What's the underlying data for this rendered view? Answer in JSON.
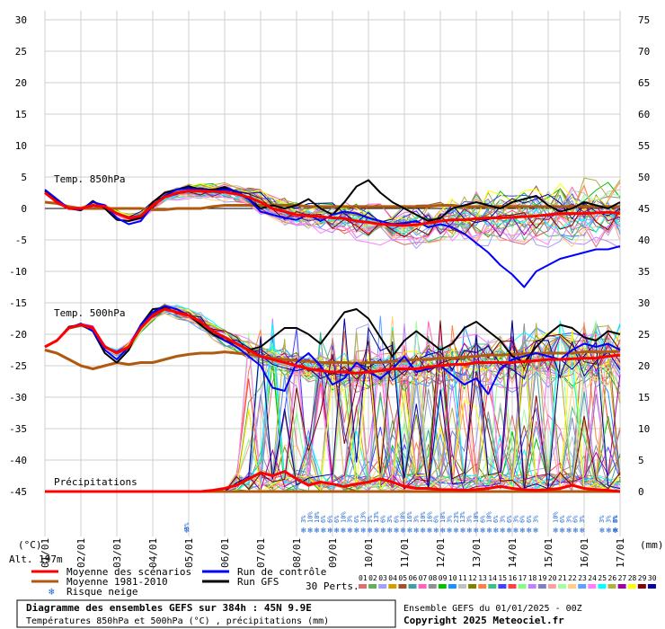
{
  "chart_data": {
    "type": "line",
    "title": "Diagramme des ensembles GEFS sur 384h : 45N 9.9E",
    "subtitle": "Températures 850hPa et 500hPa (°C) , précipitations (mm)",
    "run_info": "Ensemble GEFS du 01/01/2025 - 00Z",
    "copyright": "Copyright 2025 Meteociel.fr",
    "altitude": "Alt. 197m",
    "left_unit": "(°C)",
    "right_unit": "(mm)",
    "left_ticks": [
      "30",
      "25",
      "20",
      "15",
      "10",
      "5",
      "0",
      "-5",
      "-10",
      "-15",
      "-20",
      "-25",
      "-30",
      "-35",
      "-40",
      "-45"
    ],
    "right_ticks": [
      "75",
      "70",
      "65",
      "60",
      "55",
      "50",
      "45",
      "40",
      "35",
      "30",
      "25",
      "20",
      "15",
      "10",
      "5",
      "0"
    ],
    "x_dates": [
      "01/01",
      "02/01",
      "03/01",
      "04/01",
      "05/01",
      "06/01",
      "07/01",
      "08/01",
      "09/01",
      "10/01",
      "11/01",
      "12/01",
      "13/01",
      "14/01",
      "15/01",
      "16/01",
      "17/01"
    ],
    "panel_labels": {
      "t850": "Temp. 850hPa",
      "t500": "Temp. 500hPa",
      "precip": "Précipitations"
    },
    "snow_risk": {
      "percent_label": "3%",
      "labels": [
        "3%",
        "10%",
        "10%",
        "6%",
        "6%",
        "6%",
        "10%",
        "3%",
        "6%",
        "13%",
        "3%",
        "13%",
        "6%",
        "3%",
        "6%",
        "10%",
        "16%",
        "3%",
        "10%",
        "16%",
        "6%",
        "10%",
        "3%",
        "23%",
        "13%",
        "3%",
        "10%",
        "6%",
        "10%",
        "6%",
        "3%",
        "6%",
        "3%",
        "6%",
        "6%",
        "3%",
        "10%",
        "6%",
        "3%",
        "6%",
        "3%",
        "3%",
        "3%",
        "6%",
        "6%",
        "3%",
        "6%",
        "3%"
      ]
    },
    "legend": {
      "mean": "Moyenne des scénarios",
      "clim": "Moyenne 1981-2010",
      "control": "Run de contrôle",
      "gfs": "Run GFS",
      "snow": "Risque neige",
      "perts_label": "30 Perts."
    },
    "member_labels": [
      "01",
      "02",
      "03",
      "04",
      "05",
      "06",
      "07",
      "08",
      "09",
      "10",
      "11",
      "12",
      "13",
      "14",
      "15",
      "16",
      "17",
      "18",
      "19",
      "20",
      "21",
      "22",
      "23",
      "24",
      "25",
      "26",
      "27",
      "28",
      "29",
      "30"
    ],
    "member_colors": [
      "#e07070",
      "#60b060",
      "#a0a0ff",
      "#d0a000",
      "#a0522d",
      "#40a0a0",
      "#ff60c0",
      "#909090",
      "#00c000",
      "#2090ff",
      "#c0c0c0",
      "#808000",
      "#ff8040",
      "#40c080",
      "#4040ff",
      "#ff4040",
      "#80ff80",
      "#c080ff",
      "#8080c0",
      "#ffa0a0",
      "#a0ffa0",
      "#ffd080",
      "#60a0ff",
      "#ff80ff",
      "#00ffff",
      "#b0b040",
      "#a000a0",
      "#ffff00",
      "#800000",
      "#0000a0"
    ],
    "series_colors": {
      "mean": "#ff0000",
      "clim": "#b05a10",
      "control": "#0000ff",
      "gfs": "#000000"
    },
    "t850": {
      "mean": [
        2.5,
        1.0,
        0.0,
        0.0,
        0.5,
        0.3,
        -0.8,
        -1.5,
        -1.2,
        0.5,
        1.8,
        2.5,
        2.8,
        2.8,
        2.7,
        2.6,
        2.3,
        1.8,
        1.0,
        0.0,
        -0.5,
        -1.0,
        -1.2,
        -1.3,
        -1.5,
        -1.6,
        -2.0,
        -2.2,
        -2.5,
        -2.6,
        -2.7,
        -2.6,
        -2.3,
        -2.0,
        -1.8,
        -1.8,
        -1.6,
        -1.5,
        -1.5,
        -1.4,
        -1.3,
        -1.2,
        -1.0,
        -0.8,
        -0.8,
        -0.8,
        -0.7,
        -0.6,
        -0.8
      ],
      "clim": [
        1.0,
        0.8,
        0.3,
        0.0,
        0.0,
        0.0,
        0.0,
        0.0,
        0.0,
        -0.2,
        -0.2,
        0.0,
        0.0,
        0.0,
        0.3,
        0.5,
        0.5,
        0.5,
        0.5,
        0.5,
        0.5,
        0.5,
        0.3,
        0.3,
        0.3,
        0.3,
        0.3,
        0.3,
        0.3,
        0.3,
        0.3,
        0.3,
        0.3,
        0.5,
        0.5,
        0.3,
        0.3,
        0.3,
        0.3,
        0.3,
        0.3,
        0.3,
        0.3,
        0.3,
        0.3,
        0.3,
        0.3,
        0.3,
        0.3
      ],
      "control": [
        3.0,
        1.5,
        0.0,
        -0.2,
        1.0,
        0.5,
        -1.5,
        -2.5,
        -2.0,
        0.5,
        2.0,
        3.0,
        3.2,
        3.0,
        2.8,
        3.0,
        2.8,
        1.5,
        -0.5,
        -1.0,
        -1.5,
        -1.8,
        -1.0,
        -2.0,
        -1.0,
        -0.5,
        -0.8,
        -1.5,
        -2.0,
        -2.5,
        -2.3,
        -2.0,
        -3.0,
        -2.5,
        -3.0,
        -4.0,
        -5.5,
        -7.0,
        -9.0,
        -10.5,
        -12.5,
        -10.0,
        -9.0,
        -8.0,
        -7.5,
        -7.0,
        -6.5,
        -6.5,
        -6.0
      ],
      "gfs": [
        2.8,
        1.2,
        0.0,
        -0.3,
        1.2,
        0.0,
        -1.8,
        -2.0,
        -1.5,
        1.0,
        2.5,
        3.0,
        3.5,
        3.0,
        3.0,
        3.3,
        2.5,
        1.5,
        0.0,
        0.5,
        0.0,
        0.5,
        1.5,
        0.0,
        -1.0,
        1.0,
        3.5,
        4.5,
        2.5,
        1.0,
        0.0,
        -1.0,
        -2.0,
        -1.5,
        0.0,
        0.5,
        1.0,
        0.5,
        0.0,
        1.0,
        1.5,
        2.0,
        0.5,
        -0.5,
        0.0,
        1.0,
        0.5,
        0.0,
        1.0
      ]
    },
    "t500": {
      "mean": [
        -22.0,
        -21.0,
        -19.0,
        -18.5,
        -19.0,
        -22.0,
        -23.0,
        -22.0,
        -19.0,
        -17.0,
        -16.0,
        -16.5,
        -17.0,
        -18.0,
        -19.5,
        -20.5,
        -21.5,
        -22.5,
        -23.5,
        -24.0,
        -24.5,
        -25.0,
        -25.5,
        -25.8,
        -26.0,
        -26.0,
        -26.2,
        -26.0,
        -25.8,
        -25.5,
        -25.5,
        -25.5,
        -25.2,
        -25.0,
        -24.8,
        -24.8,
        -24.5,
        -24.5,
        -24.5,
        -24.5,
        -24.3,
        -24.2,
        -24.0,
        -24.0,
        -23.9,
        -23.8,
        -23.8,
        -23.5,
        -23.3
      ],
      "clim": [
        -22.5,
        -23.0,
        -24.0,
        -25.0,
        -25.5,
        -25.0,
        -24.5,
        -24.8,
        -24.5,
        -24.5,
        -24.0,
        -23.5,
        -23.2,
        -23.0,
        -23.0,
        -22.8,
        -23.0,
        -23.2,
        -23.5,
        -23.8,
        -24.0,
        -24.2,
        -24.3,
        -24.5,
        -24.5,
        -24.5,
        -24.6,
        -24.5,
        -24.5,
        -24.3,
        -24.2,
        -24.0,
        -24.0,
        -23.8,
        -23.8,
        -23.6,
        -23.5,
        -23.3,
        -23.3,
        -23.2,
        -23.1,
        -23.0,
        -23.0,
        -23.0,
        -23.0,
        -22.8,
        -22.8,
        -22.8,
        -22.7
      ],
      "control": [
        -22.0,
        -21.0,
        -19.0,
        -18.3,
        -19.5,
        -22.5,
        -24.0,
        -22.0,
        -18.5,
        -16.5,
        -15.5,
        -16.0,
        -17.0,
        -18.0,
        -19.5,
        -21.0,
        -22.0,
        -23.5,
        -25.0,
        -28.5,
        -29.0,
        -24.5,
        -23.0,
        -25.0,
        -28.0,
        -27.0,
        -24.5,
        -26.0,
        -27.0,
        -25.5,
        -23.5,
        -26.0,
        -25.5,
        -25.0,
        -26.5,
        -28.0,
        -27.0,
        -29.5,
        -25.5,
        -24.0,
        -23.5,
        -23.0,
        -23.5,
        -24.0,
        -22.5,
        -21.5,
        -22.0,
        -21.5,
        -22.5
      ],
      "gfs": [
        -22.0,
        -21.0,
        -18.8,
        -18.5,
        -19.5,
        -23.0,
        -24.5,
        -22.5,
        -18.5,
        -16.0,
        -15.8,
        -16.5,
        -17.0,
        -18.5,
        -20.0,
        -21.0,
        -21.5,
        -22.5,
        -22.0,
        -20.5,
        -19.0,
        -19.0,
        -20.0,
        -21.5,
        -19.0,
        -16.5,
        -16.0,
        -17.5,
        -20.5,
        -23.5,
        -21.0,
        -19.5,
        -21.0,
        -22.5,
        -21.5,
        -19.0,
        -18.0,
        -19.5,
        -21.0,
        -23.5,
        -24.5,
        -22.0,
        -20.0,
        -18.5,
        -19.0,
        -20.5,
        -21.0,
        -19.5,
        -20.0
      ]
    },
    "precip": {
      "mean": [
        0,
        0,
        0,
        0,
        0,
        0,
        0,
        0,
        0,
        0,
        0,
        0,
        0,
        0,
        0.2,
        0.5,
        1.0,
        2.0,
        3.0,
        2.5,
        3.2,
        2.0,
        1.0,
        1.5,
        1.2,
        0.8,
        1.2,
        1.5,
        2.0,
        1.5,
        0.8,
        0.5,
        0.5,
        0.3,
        0.3,
        0.2,
        0.3,
        0.5,
        0.8,
        0.5,
        0.3,
        0.2,
        0.3,
        0.5,
        1.0,
        0.5,
        0.3,
        0.2,
        0.0
      ],
      "clim": [
        0,
        0,
        0,
        0,
        0,
        0,
        0,
        0,
        0,
        0,
        0,
        0,
        0,
        0,
        0,
        0,
        0,
        0,
        0,
        0,
        0,
        0,
        0,
        0,
        0,
        0,
        0,
        0,
        0,
        0,
        0,
        0,
        0,
        0,
        0,
        0,
        0,
        0,
        0,
        0,
        0,
        0,
        0,
        0,
        0,
        0,
        0,
        0,
        0
      ]
    }
  }
}
